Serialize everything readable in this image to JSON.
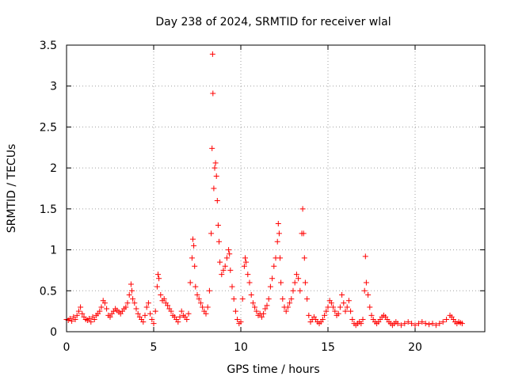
{
  "chart_data": {
    "type": "scatter",
    "title": "Day 238 of 2024, SRMTID for receiver wlal",
    "xlabel": "GPS time / hours",
    "ylabel": "SRMTID / TECUs",
    "xlim": [
      0,
      24
    ],
    "ylim": [
      0,
      3.5
    ],
    "xticks": [
      0,
      5,
      10,
      15,
      20
    ],
    "xtick_labels": [
      "0",
      "5",
      "10",
      "15",
      "20"
    ],
    "yticks": [
      0,
      0.5,
      1,
      1.5,
      2,
      2.5,
      3,
      3.5
    ],
    "ytick_labels": [
      "0",
      "0.5",
      "1",
      "1.5",
      "2",
      "2.5",
      "3",
      "3.5"
    ],
    "grid": true,
    "marker": "+",
    "color": "#ff0000",
    "series": [
      {
        "name": "SRMTID",
        "points": [
          [
            0.0,
            0.15
          ],
          [
            0.1,
            0.14
          ],
          [
            0.2,
            0.16
          ],
          [
            0.3,
            0.13
          ],
          [
            0.4,
            0.18
          ],
          [
            0.5,
            0.15
          ],
          [
            0.6,
            0.2
          ],
          [
            0.7,
            0.25
          ],
          [
            0.8,
            0.3
          ],
          [
            0.9,
            0.22
          ],
          [
            1.0,
            0.18
          ],
          [
            1.1,
            0.15
          ],
          [
            1.2,
            0.14
          ],
          [
            1.3,
            0.16
          ],
          [
            1.4,
            0.12
          ],
          [
            1.5,
            0.18
          ],
          [
            1.6,
            0.15
          ],
          [
            1.7,
            0.2
          ],
          [
            1.8,
            0.22
          ],
          [
            1.9,
            0.25
          ],
          [
            2.0,
            0.3
          ],
          [
            2.1,
            0.38
          ],
          [
            2.2,
            0.35
          ],
          [
            2.3,
            0.28
          ],
          [
            2.4,
            0.2
          ],
          [
            2.5,
            0.18
          ],
          [
            2.6,
            0.22
          ],
          [
            2.7,
            0.25
          ],
          [
            2.8,
            0.28
          ],
          [
            2.9,
            0.26
          ],
          [
            3.0,
            0.24
          ],
          [
            3.1,
            0.22
          ],
          [
            3.2,
            0.25
          ],
          [
            3.3,
            0.28
          ],
          [
            3.4,
            0.3
          ],
          [
            3.5,
            0.35
          ],
          [
            3.6,
            0.45
          ],
          [
            3.7,
            0.58
          ],
          [
            3.75,
            0.5
          ],
          [
            3.8,
            0.4
          ],
          [
            3.9,
            0.35
          ],
          [
            4.0,
            0.28
          ],
          [
            4.1,
            0.22
          ],
          [
            4.2,
            0.18
          ],
          [
            4.3,
            0.15
          ],
          [
            4.4,
            0.12
          ],
          [
            4.5,
            0.2
          ],
          [
            4.6,
            0.3
          ],
          [
            4.7,
            0.35
          ],
          [
            4.8,
            0.22
          ],
          [
            4.9,
            0.15
          ],
          [
            5.0,
            0.1
          ],
          [
            5.1,
            0.25
          ],
          [
            5.2,
            0.55
          ],
          [
            5.25,
            0.7
          ],
          [
            5.3,
            0.65
          ],
          [
            5.4,
            0.45
          ],
          [
            5.5,
            0.38
          ],
          [
            5.6,
            0.4
          ],
          [
            5.7,
            0.35
          ],
          [
            5.8,
            0.32
          ],
          [
            5.9,
            0.28
          ],
          [
            6.0,
            0.25
          ],
          [
            6.1,
            0.2
          ],
          [
            6.2,
            0.18
          ],
          [
            6.3,
            0.15
          ],
          [
            6.4,
            0.12
          ],
          [
            6.5,
            0.18
          ],
          [
            6.6,
            0.25
          ],
          [
            6.7,
            0.2
          ],
          [
            6.8,
            0.18
          ],
          [
            6.9,
            0.15
          ],
          [
            7.0,
            0.22
          ],
          [
            7.1,
            0.6
          ],
          [
            7.2,
            0.9
          ],
          [
            7.25,
            1.13
          ],
          [
            7.3,
            1.05
          ],
          [
            7.35,
            0.8
          ],
          [
            7.4,
            0.55
          ],
          [
            7.5,
            0.45
          ],
          [
            7.6,
            0.4
          ],
          [
            7.7,
            0.35
          ],
          [
            7.8,
            0.3
          ],
          [
            7.9,
            0.25
          ],
          [
            8.0,
            0.22
          ],
          [
            8.1,
            0.3
          ],
          [
            8.2,
            0.5
          ],
          [
            8.3,
            1.2
          ],
          [
            8.35,
            2.24
          ],
          [
            8.38,
            3.39
          ],
          [
            8.4,
            2.91
          ],
          [
            8.45,
            1.75
          ],
          [
            8.5,
            2.0
          ],
          [
            8.55,
            2.06
          ],
          [
            8.6,
            1.9
          ],
          [
            8.65,
            1.6
          ],
          [
            8.7,
            1.3
          ],
          [
            8.75,
            1.1
          ],
          [
            8.8,
            0.85
          ],
          [
            8.9,
            0.7
          ],
          [
            9.0,
            0.75
          ],
          [
            9.1,
            0.8
          ],
          [
            9.2,
            0.9
          ],
          [
            9.3,
            1.0
          ],
          [
            9.35,
            0.95
          ],
          [
            9.4,
            0.75
          ],
          [
            9.5,
            0.55
          ],
          [
            9.6,
            0.4
          ],
          [
            9.7,
            0.25
          ],
          [
            9.8,
            0.15
          ],
          [
            9.9,
            0.1
          ],
          [
            10.0,
            0.12
          ],
          [
            10.1,
            0.4
          ],
          [
            10.2,
            0.8
          ],
          [
            10.25,
            0.9
          ],
          [
            10.3,
            0.85
          ],
          [
            10.4,
            0.7
          ],
          [
            10.5,
            0.6
          ],
          [
            10.6,
            0.45
          ],
          [
            10.7,
            0.35
          ],
          [
            10.8,
            0.3
          ],
          [
            10.9,
            0.25
          ],
          [
            11.0,
            0.2
          ],
          [
            11.1,
            0.22
          ],
          [
            11.2,
            0.18
          ],
          [
            11.3,
            0.22
          ],
          [
            11.4,
            0.28
          ],
          [
            11.5,
            0.32
          ],
          [
            11.6,
            0.4
          ],
          [
            11.7,
            0.55
          ],
          [
            11.8,
            0.65
          ],
          [
            11.9,
            0.8
          ],
          [
            12.0,
            0.9
          ],
          [
            12.1,
            1.1
          ],
          [
            12.15,
            1.32
          ],
          [
            12.2,
            1.2
          ],
          [
            12.25,
            0.9
          ],
          [
            12.3,
            0.6
          ],
          [
            12.4,
            0.4
          ],
          [
            12.5,
            0.3
          ],
          [
            12.6,
            0.25
          ],
          [
            12.7,
            0.3
          ],
          [
            12.8,
            0.35
          ],
          [
            12.9,
            0.4
          ],
          [
            13.0,
            0.5
          ],
          [
            13.1,
            0.6
          ],
          [
            13.2,
            0.7
          ],
          [
            13.3,
            0.65
          ],
          [
            13.4,
            0.5
          ],
          [
            13.5,
            1.2
          ],
          [
            13.55,
            1.5
          ],
          [
            13.6,
            1.2
          ],
          [
            13.65,
            0.9
          ],
          [
            13.7,
            0.6
          ],
          [
            13.8,
            0.4
          ],
          [
            13.9,
            0.2
          ],
          [
            14.0,
            0.12
          ],
          [
            14.1,
            0.15
          ],
          [
            14.2,
            0.18
          ],
          [
            14.3,
            0.15
          ],
          [
            14.4,
            0.12
          ],
          [
            14.5,
            0.1
          ],
          [
            14.6,
            0.12
          ],
          [
            14.7,
            0.15
          ],
          [
            14.8,
            0.2
          ],
          [
            14.9,
            0.25
          ],
          [
            15.0,
            0.3
          ],
          [
            15.1,
            0.38
          ],
          [
            15.2,
            0.35
          ],
          [
            15.3,
            0.3
          ],
          [
            15.4,
            0.25
          ],
          [
            15.5,
            0.2
          ],
          [
            15.6,
            0.22
          ],
          [
            15.7,
            0.3
          ],
          [
            15.8,
            0.45
          ],
          [
            15.9,
            0.35
          ],
          [
            16.0,
            0.25
          ],
          [
            16.1,
            0.3
          ],
          [
            16.2,
            0.38
          ],
          [
            16.3,
            0.25
          ],
          [
            16.4,
            0.15
          ],
          [
            16.5,
            0.1
          ],
          [
            16.6,
            0.08
          ],
          [
            16.7,
            0.1
          ],
          [
            16.8,
            0.12
          ],
          [
            16.9,
            0.1
          ],
          [
            17.0,
            0.15
          ],
          [
            17.1,
            0.5
          ],
          [
            17.15,
            0.92
          ],
          [
            17.2,
            0.6
          ],
          [
            17.3,
            0.45
          ],
          [
            17.4,
            0.3
          ],
          [
            17.5,
            0.2
          ],
          [
            17.6,
            0.15
          ],
          [
            17.7,
            0.12
          ],
          [
            17.8,
            0.1
          ],
          [
            17.9,
            0.12
          ],
          [
            18.0,
            0.15
          ],
          [
            18.1,
            0.18
          ],
          [
            18.2,
            0.2
          ],
          [
            18.3,
            0.18
          ],
          [
            18.4,
            0.15
          ],
          [
            18.5,
            0.12
          ],
          [
            18.6,
            0.1
          ],
          [
            18.7,
            0.08
          ],
          [
            18.8,
            0.1
          ],
          [
            18.9,
            0.12
          ],
          [
            19.0,
            0.1
          ],
          [
            19.2,
            0.08
          ],
          [
            19.4,
            0.1
          ],
          [
            19.6,
            0.12
          ],
          [
            19.8,
            0.1
          ],
          [
            20.0,
            0.08
          ],
          [
            20.2,
            0.1
          ],
          [
            20.4,
            0.12
          ],
          [
            20.6,
            0.1
          ],
          [
            20.8,
            0.09
          ],
          [
            21.0,
            0.1
          ],
          [
            21.2,
            0.08
          ],
          [
            21.4,
            0.1
          ],
          [
            21.6,
            0.12
          ],
          [
            21.8,
            0.15
          ],
          [
            22.0,
            0.2
          ],
          [
            22.1,
            0.18
          ],
          [
            22.2,
            0.15
          ],
          [
            22.3,
            0.12
          ],
          [
            22.4,
            0.1
          ],
          [
            22.5,
            0.12
          ],
          [
            22.6,
            0.11
          ],
          [
            22.7,
            0.1
          ]
        ]
      }
    ]
  }
}
